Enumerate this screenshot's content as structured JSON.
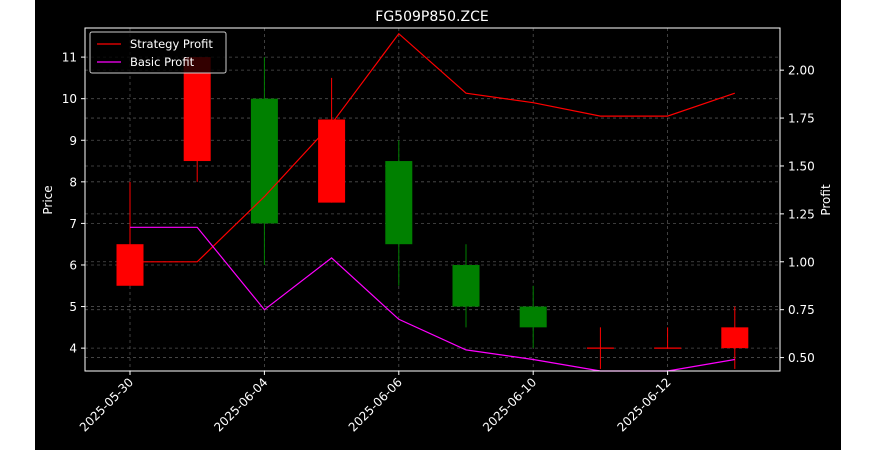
{
  "chart_data": {
    "type": "candlestick",
    "title": "FG509P850.ZCE",
    "ylabel_left": "Price",
    "ylabel_right": "Profit",
    "ylim_left": [
      3.45,
      11.7
    ],
    "ylim_right": [
      0.43,
      2.22
    ],
    "left_ticks": [
      4,
      5,
      6,
      7,
      8,
      9,
      10,
      11
    ],
    "right_ticks": [
      "0.50",
      "0.75",
      "1.00",
      "1.25",
      "1.50",
      "1.75",
      "2.00"
    ],
    "x_tick_labels": [
      "2025-05-30",
      "2025-06-04",
      "2025-06-06",
      "2025-06-10",
      "2025-06-12"
    ],
    "x_tick_indices": [
      0,
      2,
      4,
      6,
      8
    ],
    "grid": true,
    "legend_position": "top-left",
    "candles": [
      {
        "open": 5.5,
        "close": 6.5,
        "high": 8.0,
        "low": 5.5,
        "color": "red"
      },
      {
        "open": 8.5,
        "close": 11.0,
        "high": 11.0,
        "low": 8.0,
        "color": "red"
      },
      {
        "open": 10.0,
        "close": 7.0,
        "high": 11.0,
        "low": 6.0,
        "color": "green"
      },
      {
        "open": 7.5,
        "close": 9.5,
        "high": 10.5,
        "low": 7.5,
        "color": "red"
      },
      {
        "open": 8.5,
        "close": 6.5,
        "high": 9.0,
        "low": 5.5,
        "color": "green"
      },
      {
        "open": 6.0,
        "close": 5.0,
        "high": 6.5,
        "low": 4.5,
        "color": "green"
      },
      {
        "open": 5.0,
        "close": 4.5,
        "high": 5.5,
        "low": 4.0,
        "color": "green"
      },
      {
        "open": 4.0,
        "close": 4.0,
        "high": 4.5,
        "low": 3.5,
        "color": "red"
      },
      {
        "open": 4.0,
        "close": 4.0,
        "high": 4.5,
        "low": 4.0,
        "color": "red"
      },
      {
        "open": 4.0,
        "close": 4.5,
        "high": 5.0,
        "low": 3.5,
        "color": "red"
      }
    ],
    "series": [
      {
        "name": "Strategy Profit",
        "color": "#ff0000",
        "axis": "right",
        "x": [
          0,
          1,
          2,
          3,
          4,
          5,
          6,
          7,
          8,
          9
        ],
        "values": [
          1.0,
          1.0,
          1.34,
          1.72,
          2.19,
          1.88,
          1.83,
          1.76,
          1.76,
          1.88
        ]
      },
      {
        "name": "Basic Profit",
        "color": "#ff00ff",
        "axis": "right",
        "x": [
          0,
          1,
          2,
          3,
          4,
          5,
          6,
          7,
          8,
          9
        ],
        "values": [
          1.18,
          1.18,
          0.75,
          1.02,
          0.7,
          0.54,
          0.49,
          0.43,
          0.43,
          0.49
        ]
      }
    ],
    "colors": {
      "up": "#ff0000",
      "down": "#008000",
      "axis": "#ffffff",
      "background": "#000000"
    }
  }
}
